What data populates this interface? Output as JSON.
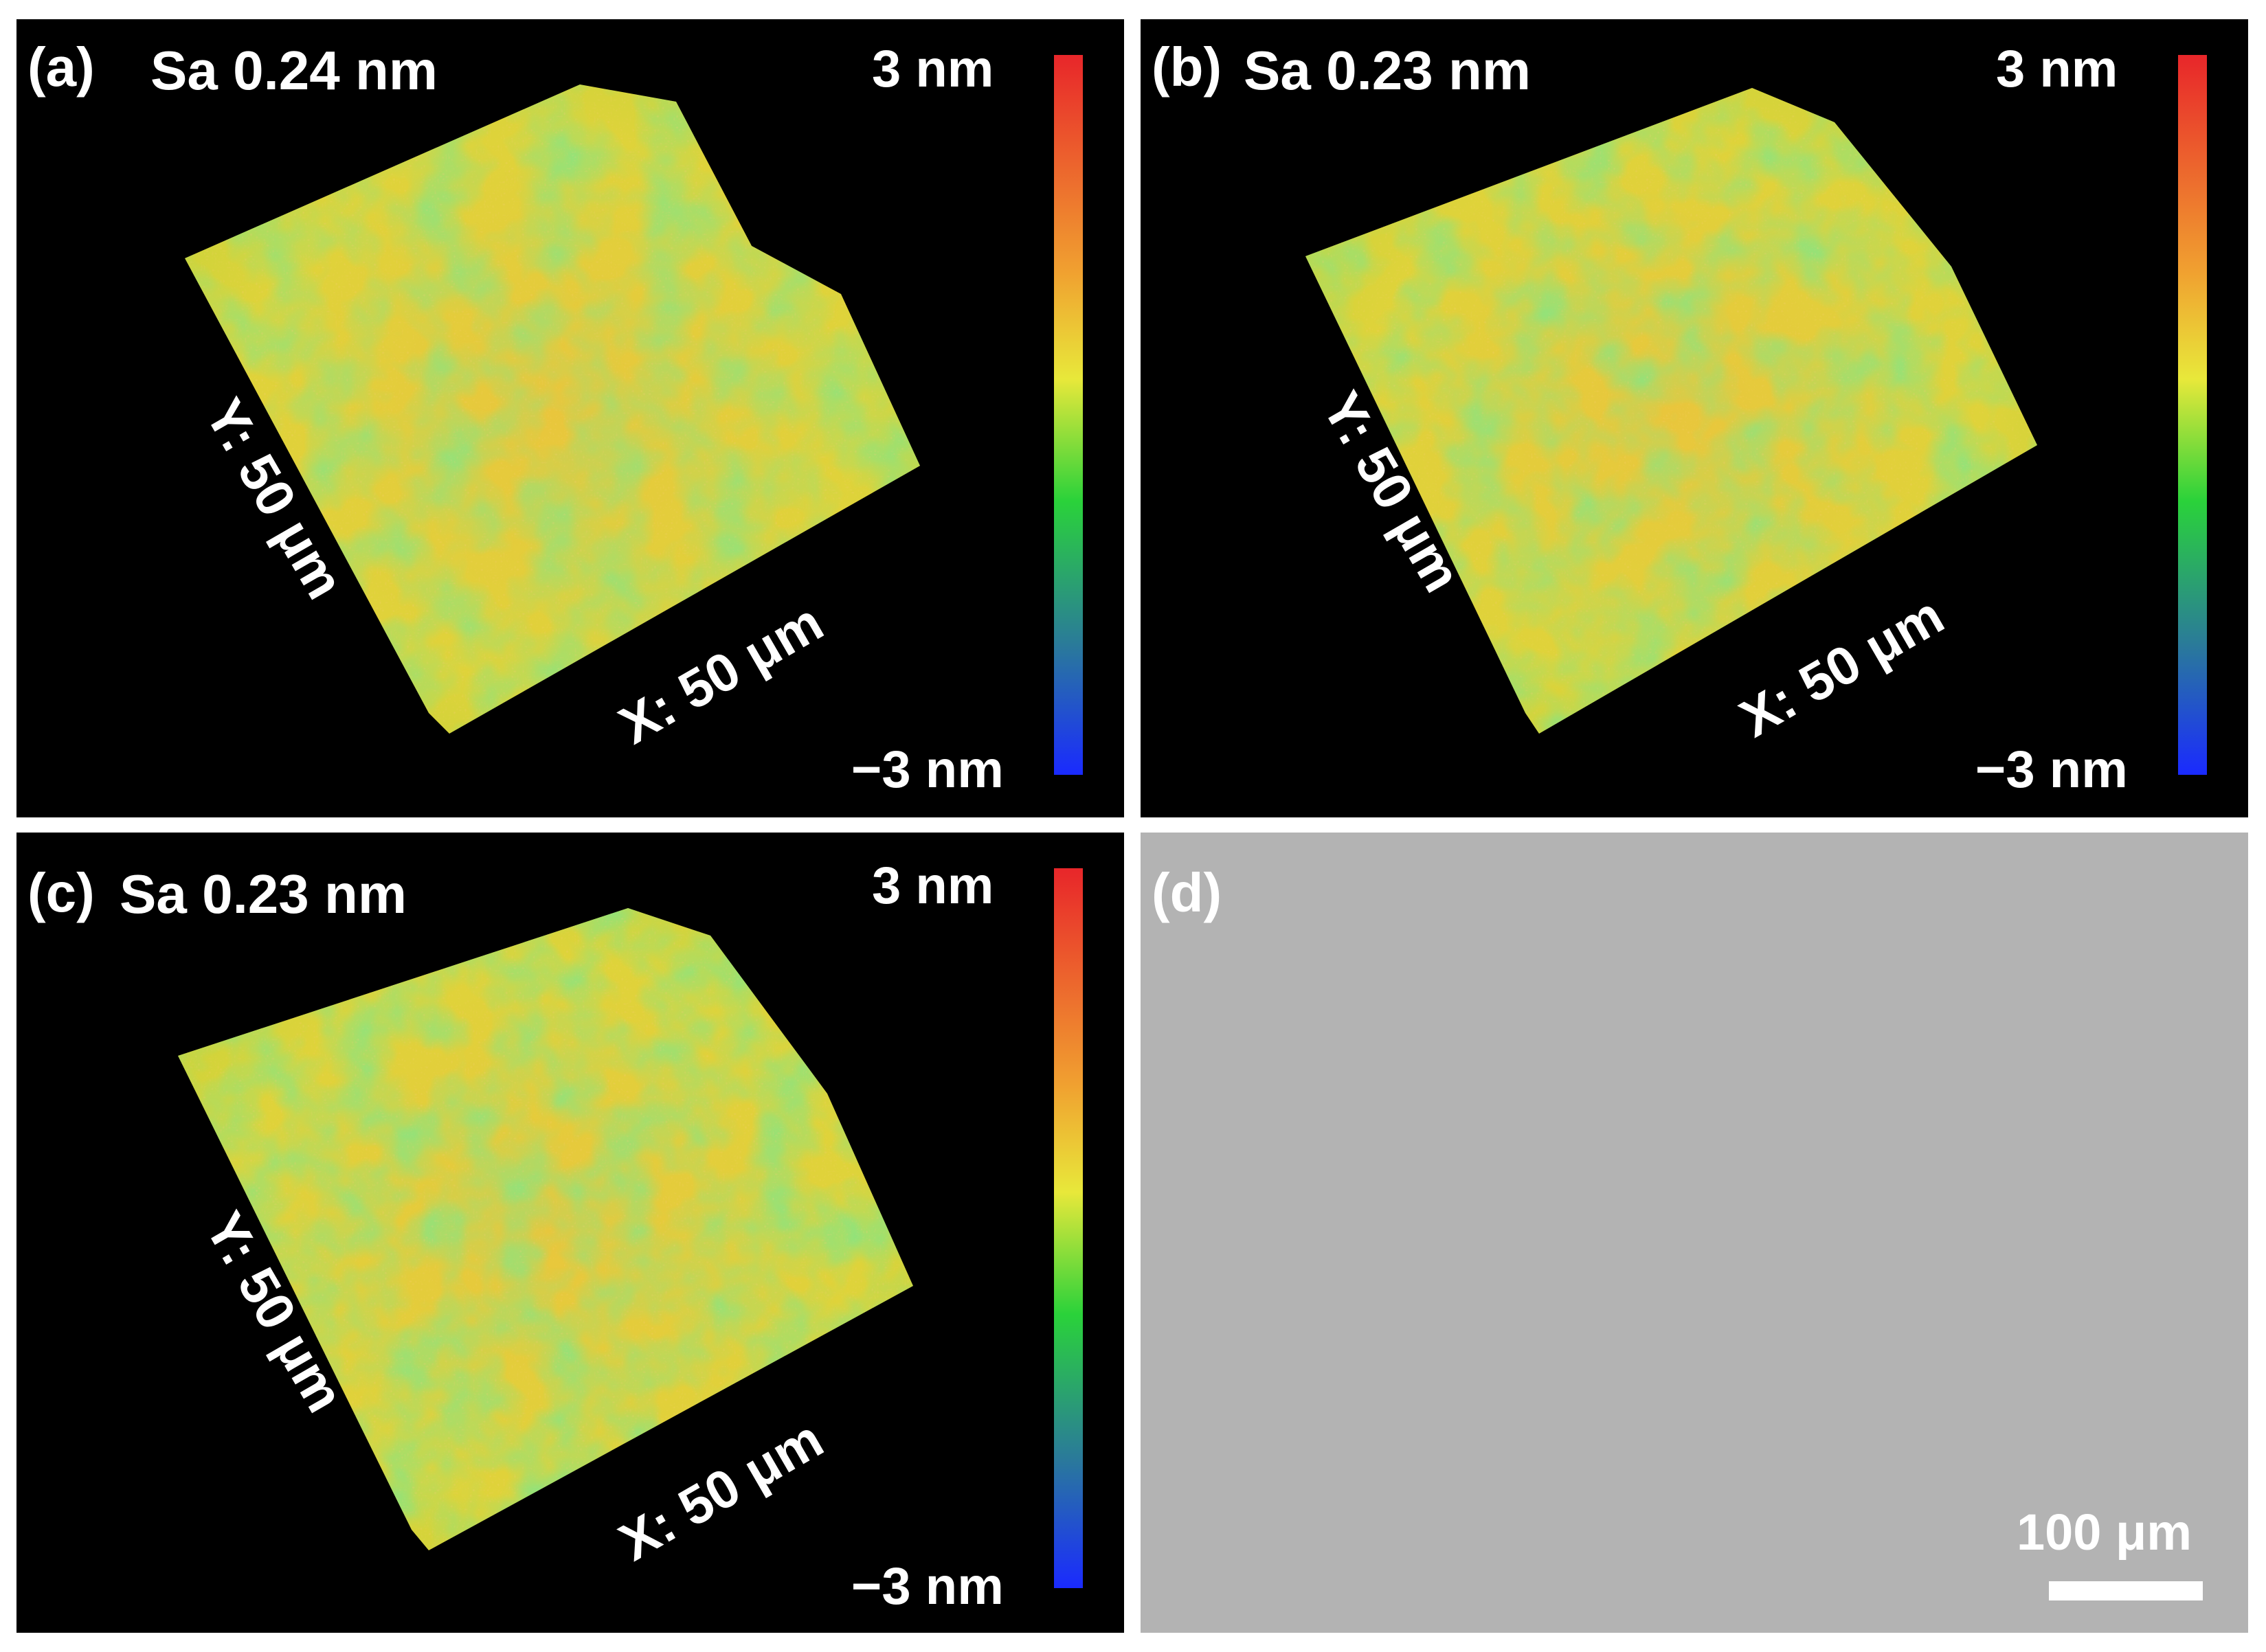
{
  "figure": {
    "panels": [
      {
        "id": "a",
        "letter": "(a)",
        "sa_text": "Sa 0.24 nm",
        "colorbar_top": "3 nm",
        "colorbar_bottom": "−3 nm",
        "y_axis": "Y: 50 μm",
        "x_axis": "X: 50 μm"
      },
      {
        "id": "b",
        "letter": "(b)",
        "sa_text": "Sa 0.23 nm",
        "colorbar_top": "3 nm",
        "colorbar_bottom": "−3 nm",
        "y_axis": "Y: 50 μm",
        "x_axis": "X: 50 μm"
      },
      {
        "id": "c",
        "letter": "(c)",
        "sa_text": "Sa 0.23 nm",
        "colorbar_top": "3 nm",
        "colorbar_bottom": "−3 nm",
        "y_axis": "Y: 50 μm",
        "x_axis": "X: 50 μm"
      },
      {
        "id": "d",
        "letter": "(d)",
        "scalebar": "100 μm"
      }
    ],
    "colors": {
      "panel_background": "#000000",
      "micrograph_gray": "#b3b3b3",
      "surface_yellow": "#e6d83a",
      "surface_green": "#3fc83a",
      "surface_orange": "#e8a03a",
      "colorbar_stops": [
        "#e8262a",
        "#f0a030",
        "#e8e83a",
        "#2ad23a",
        "#2a7a9a",
        "#1a2aff"
      ]
    }
  }
}
